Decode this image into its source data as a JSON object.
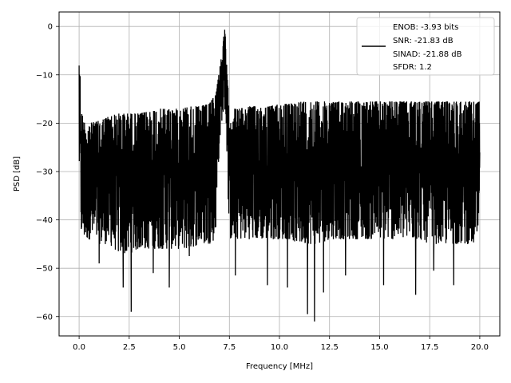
{
  "chart_data": {
    "type": "line",
    "xlabel": "Frequency [MHz]",
    "ylabel": "PSD [dB]",
    "xlim": [
      -1.0,
      21.0
    ],
    "ylim": [
      -64.0,
      3.0
    ],
    "xticks": [
      0.0,
      2.5,
      5.0,
      7.5,
      10.0,
      12.5,
      15.0,
      17.5,
      20.0
    ],
    "xtick_labels": [
      "0.0",
      "2.5",
      "5.0",
      "7.5",
      "10.0",
      "12.5",
      "15.0",
      "17.5",
      "20.0"
    ],
    "yticks": [
      0,
      -10,
      -20,
      -30,
      -40,
      -50,
      -60
    ],
    "ytick_labels": [
      "0",
      "−10",
      "−20",
      "−30",
      "−40",
      "−50",
      "−60"
    ],
    "grid": true,
    "legend_position": "top-right",
    "legend_lines": [
      "ENOB: -3.93 bits",
      "SNR: -21.83 dB",
      "SINAD: -21.88 dB",
      "SFDR: 1.2"
    ],
    "line_color": "#000000",
    "series": [
      {
        "x": [
          0.0,
          0.05,
          0.1,
          0.2,
          0.3,
          0.5,
          1.0,
          1.5,
          2.0,
          2.5,
          3.0,
          3.5,
          4.0,
          4.5,
          5.0,
          5.5,
          6.0,
          6.5,
          6.8,
          7.0,
          7.1,
          7.2,
          7.25,
          7.3,
          7.35,
          7.4,
          7.5,
          7.6,
          7.8,
          8.0,
          8.5,
          9.0,
          9.5,
          10.0,
          10.5,
          11.0,
          11.5,
          12.0,
          12.5,
          13.0,
          13.5,
          14.0,
          14.5,
          15.0,
          15.5,
          16.0,
          16.5,
          17.0,
          17.5,
          18.0,
          18.5,
          19.0,
          19.5,
          20.0
        ],
        "y_upper": [
          -2,
          -10,
          -17,
          -19,
          -20,
          -20,
          -19.5,
          -18.5,
          -18,
          -18,
          -18,
          -17.5,
          -17,
          -17,
          -17,
          -16.5,
          -16.5,
          -16,
          -14,
          -9,
          -6,
          -3,
          0,
          -2,
          -6,
          -11,
          -16,
          -17,
          -17,
          -17,
          -16.5,
          -16.5,
          -16.5,
          -16,
          -16,
          -15.5,
          -15.5,
          -15.5,
          -15.5,
          -15.5,
          -15.5,
          -15.5,
          -15.5,
          -15.5,
          -15.5,
          -15.5,
          -15.5,
          -15.5,
          -15.5,
          -15.5,
          -15.5,
          -15.5,
          -15.5,
          -15.5
        ],
        "y_lower": [
          -30,
          -33,
          -43,
          -44,
          -44,
          -44,
          -45,
          -45,
          -47,
          -47,
          -46,
          -46,
          -46,
          -46,
          -46,
          -46,
          -45,
          -45,
          -44,
          -25,
          -20,
          -18,
          -17,
          -18,
          -22,
          -30,
          -44,
          -44,
          -44,
          -44,
          -44,
          -44,
          -44,
          -44,
          -44,
          -45,
          -45,
          -45,
          -44,
          -44,
          -44,
          -44,
          -44,
          -44,
          -44,
          -44,
          -44,
          -44,
          -45,
          -45,
          -45,
          -45,
          -45,
          -45
        ],
        "spikes": [
          {
            "x": 1.0,
            "y": -49
          },
          {
            "x": 2.2,
            "y": -54
          },
          {
            "x": 2.6,
            "y": -59
          },
          {
            "x": 3.7,
            "y": -51
          },
          {
            "x": 4.5,
            "y": -54
          },
          {
            "x": 5.5,
            "y": -47.5
          },
          {
            "x": 7.8,
            "y": -51.5
          },
          {
            "x": 9.4,
            "y": -53.5
          },
          {
            "x": 10.4,
            "y": -54
          },
          {
            "x": 11.4,
            "y": -59.5
          },
          {
            "x": 11.75,
            "y": -61
          },
          {
            "x": 12.2,
            "y": -55
          },
          {
            "x": 13.3,
            "y": -51.5
          },
          {
            "x": 15.2,
            "y": -53.5
          },
          {
            "x": 16.8,
            "y": -55.5
          },
          {
            "x": 17.7,
            "y": -50.5
          },
          {
            "x": 18.7,
            "y": -53.5
          }
        ]
      }
    ]
  }
}
